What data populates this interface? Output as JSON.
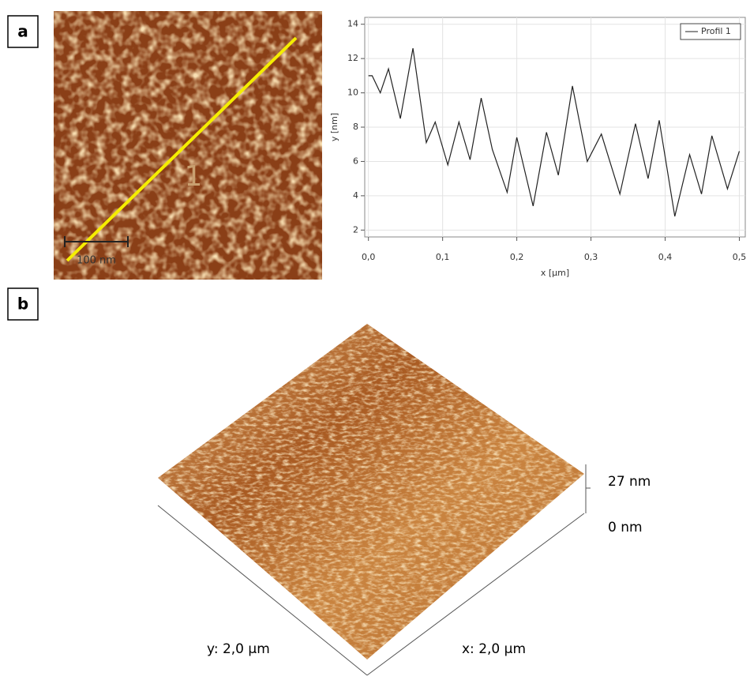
{
  "panels": {
    "a": "a",
    "b": "b"
  },
  "image_a": {
    "scale_bar": "100 nm",
    "marker": "1"
  },
  "image_b": {
    "z_max": "27 nm",
    "z_min": "0 nm",
    "y_size": "y: 2,0 µm",
    "x_size": "x: 2,0 µm"
  },
  "chart_data": {
    "type": "line",
    "xlabel": "x [µm]",
    "ylabel": "y [nm]",
    "x": [
      0,
      0.005,
      0.016,
      0.027,
      0.043,
      0.06,
      0.078,
      0.09,
      0.107,
      0.122,
      0.137,
      0.152,
      0.167,
      0.187,
      0.2,
      0.222,
      0.24,
      0.256,
      0.275,
      0.295,
      0.314,
      0.339,
      0.36,
      0.377,
      0.392,
      0.413,
      0.433,
      0.449,
      0.463,
      0.484,
      0.5
    ],
    "series": [
      {
        "name": "Profil 1",
        "color": "#222222",
        "values": [
          11.0,
          11.0,
          10.0,
          11.4,
          8.5,
          12.6,
          7.1,
          8.3,
          5.8,
          8.3,
          6.1,
          9.7,
          6.7,
          4.2,
          7.4,
          3.4,
          7.7,
          5.2,
          10.4,
          6.0,
          7.6,
          4.1,
          8.2,
          5.0,
          8.4,
          2.8,
          6.4,
          4.1,
          7.5,
          4.4,
          6.6
        ]
      }
    ],
    "xlim": [
      -0.005,
      0.508
    ],
    "ylim": [
      1.6,
      14.4
    ],
    "xticks": [
      {
        "value": 0,
        "label": "0,0"
      },
      {
        "value": 0.1,
        "label": "0,1"
      },
      {
        "value": 0.2,
        "label": "0,2"
      },
      {
        "value": 0.3,
        "label": "0,3"
      },
      {
        "value": 0.4,
        "label": "0,4"
      },
      {
        "value": 0.5,
        "label": "0,5"
      }
    ],
    "yticks": [
      2,
      4,
      6,
      8,
      10,
      12,
      14
    ],
    "grid": true,
    "legend": "upper right"
  }
}
